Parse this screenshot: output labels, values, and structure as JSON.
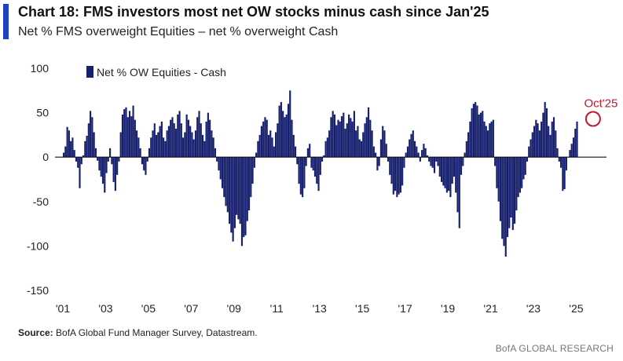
{
  "header": {
    "title": "Chart 18: FMS investors most net OW stocks minus cash since Jan'25",
    "subtitle": "Net % FMS overweight Equities – net % overweight Cash"
  },
  "footer": {
    "source_label": "Source:",
    "source_text": "BofA Global Fund Manager Survey, Datastream.",
    "brand": "BofA GLOBAL RESEARCH"
  },
  "colors": {
    "bar": "#17206e",
    "accent": "#1f3fbf",
    "annotation": "#c0182f"
  },
  "chart_data": {
    "type": "bar",
    "title": "Chart 18: FMS investors most net OW stocks minus cash since Jan'25",
    "subtitle": "Net % FMS overweight Equities – net % overweight Cash",
    "series": [
      {
        "name": "Net % OW Equities - Cash",
        "start_date": "2001-01",
        "frequency": "monthly",
        "values": [
          5,
          12,
          34,
          30,
          18,
          22,
          8,
          -5,
          -12,
          -35,
          -8,
          2,
          18,
          24,
          38,
          52,
          45,
          28,
          10,
          -4,
          -15,
          -22,
          -30,
          -40,
          -18,
          -5,
          10,
          -8,
          -28,
          -38,
          -20,
          -5,
          28,
          48,
          54,
          56,
          45,
          52,
          46,
          58,
          42,
          30,
          22,
          10,
          -8,
          -15,
          -20,
          -5,
          10,
          22,
          30,
          38,
          25,
          28,
          35,
          40,
          22,
          18,
          30,
          35,
          42,
          45,
          38,
          32,
          48,
          52,
          38,
          22,
          28,
          48,
          42,
          35,
          28,
          20,
          30,
          45,
          52,
          38,
          25,
          18,
          40,
          50,
          42,
          30,
          22,
          10,
          -5,
          -15,
          -25,
          -35,
          -45,
          -55,
          -62,
          -75,
          -85,
          -95,
          -80,
          -65,
          -70,
          -75,
          -100,
          -90,
          -88,
          -72,
          -60,
          -45,
          -30,
          -12,
          5,
          18,
          25,
          35,
          40,
          45,
          42,
          25,
          30,
          22,
          12,
          28,
          38,
          58,
          62,
          52,
          45,
          48,
          60,
          75,
          42,
          25,
          12,
          -8,
          -30,
          -42,
          -45,
          -35,
          -10,
          10,
          15,
          -12,
          -15,
          -22,
          -30,
          -38,
          -20,
          -5,
          2,
          18,
          22,
          30,
          45,
          52,
          48,
          36,
          42,
          40,
          46,
          50,
          32,
          38,
          48,
          44,
          40,
          52,
          30,
          35,
          20,
          18,
          28,
          38,
          45,
          56,
          42,
          30,
          12,
          5,
          -15,
          -10,
          20,
          35,
          30,
          15,
          -5,
          -20,
          -30,
          -42,
          -38,
          -45,
          -42,
          -40,
          -32,
          -12,
          5,
          12,
          20,
          26,
          30,
          18,
          12,
          5,
          -5,
          8,
          15,
          10,
          2,
          -5,
          -10,
          -12,
          -18,
          -5,
          -10,
          -22,
          -28,
          -32,
          -35,
          -40,
          -38,
          -45,
          -30,
          -22,
          -40,
          -62,
          -80,
          -20,
          -10,
          5,
          18,
          28,
          40,
          55,
          60,
          62,
          58,
          48,
          50,
          52,
          40,
          35,
          30,
          38,
          40,
          42,
          -10,
          -35,
          -50,
          -72,
          -92,
          -100,
          -112,
          -90,
          -80,
          -68,
          -82,
          -75,
          -60,
          -45,
          -40,
          -35,
          -25,
          -20,
          -5,
          12,
          20,
          28,
          35,
          42,
          38,
          30,
          40,
          50,
          62,
          55,
          35,
          25,
          40,
          45,
          30,
          10,
          -5,
          -12,
          -38,
          -36,
          -15,
          0,
          8,
          15,
          22,
          32,
          40
        ]
      }
    ],
    "x_tick_labels": [
      "'01",
      "'03",
      "'05",
      "'07",
      "'09",
      "'11",
      "'13",
      "'15",
      "'17",
      "'19",
      "'21",
      "'23",
      "'25"
    ],
    "x_tick_years": [
      2001,
      2003,
      2005,
      2007,
      2009,
      2011,
      2013,
      2015,
      2017,
      2019,
      2021,
      2023,
      2025
    ],
    "y_ticks": [
      100,
      50,
      0,
      -50,
      -100,
      -150
    ],
    "ylim": [
      -150,
      100
    ],
    "xlim": [
      "2001-01",
      "2026-06"
    ],
    "legend": {
      "label": "Net % OW Equities - Cash",
      "position": "top-left"
    },
    "annotation": {
      "label": "Oct'25",
      "date": "2025-10",
      "value": 43,
      "style": "red circle"
    },
    "grid": false
  }
}
